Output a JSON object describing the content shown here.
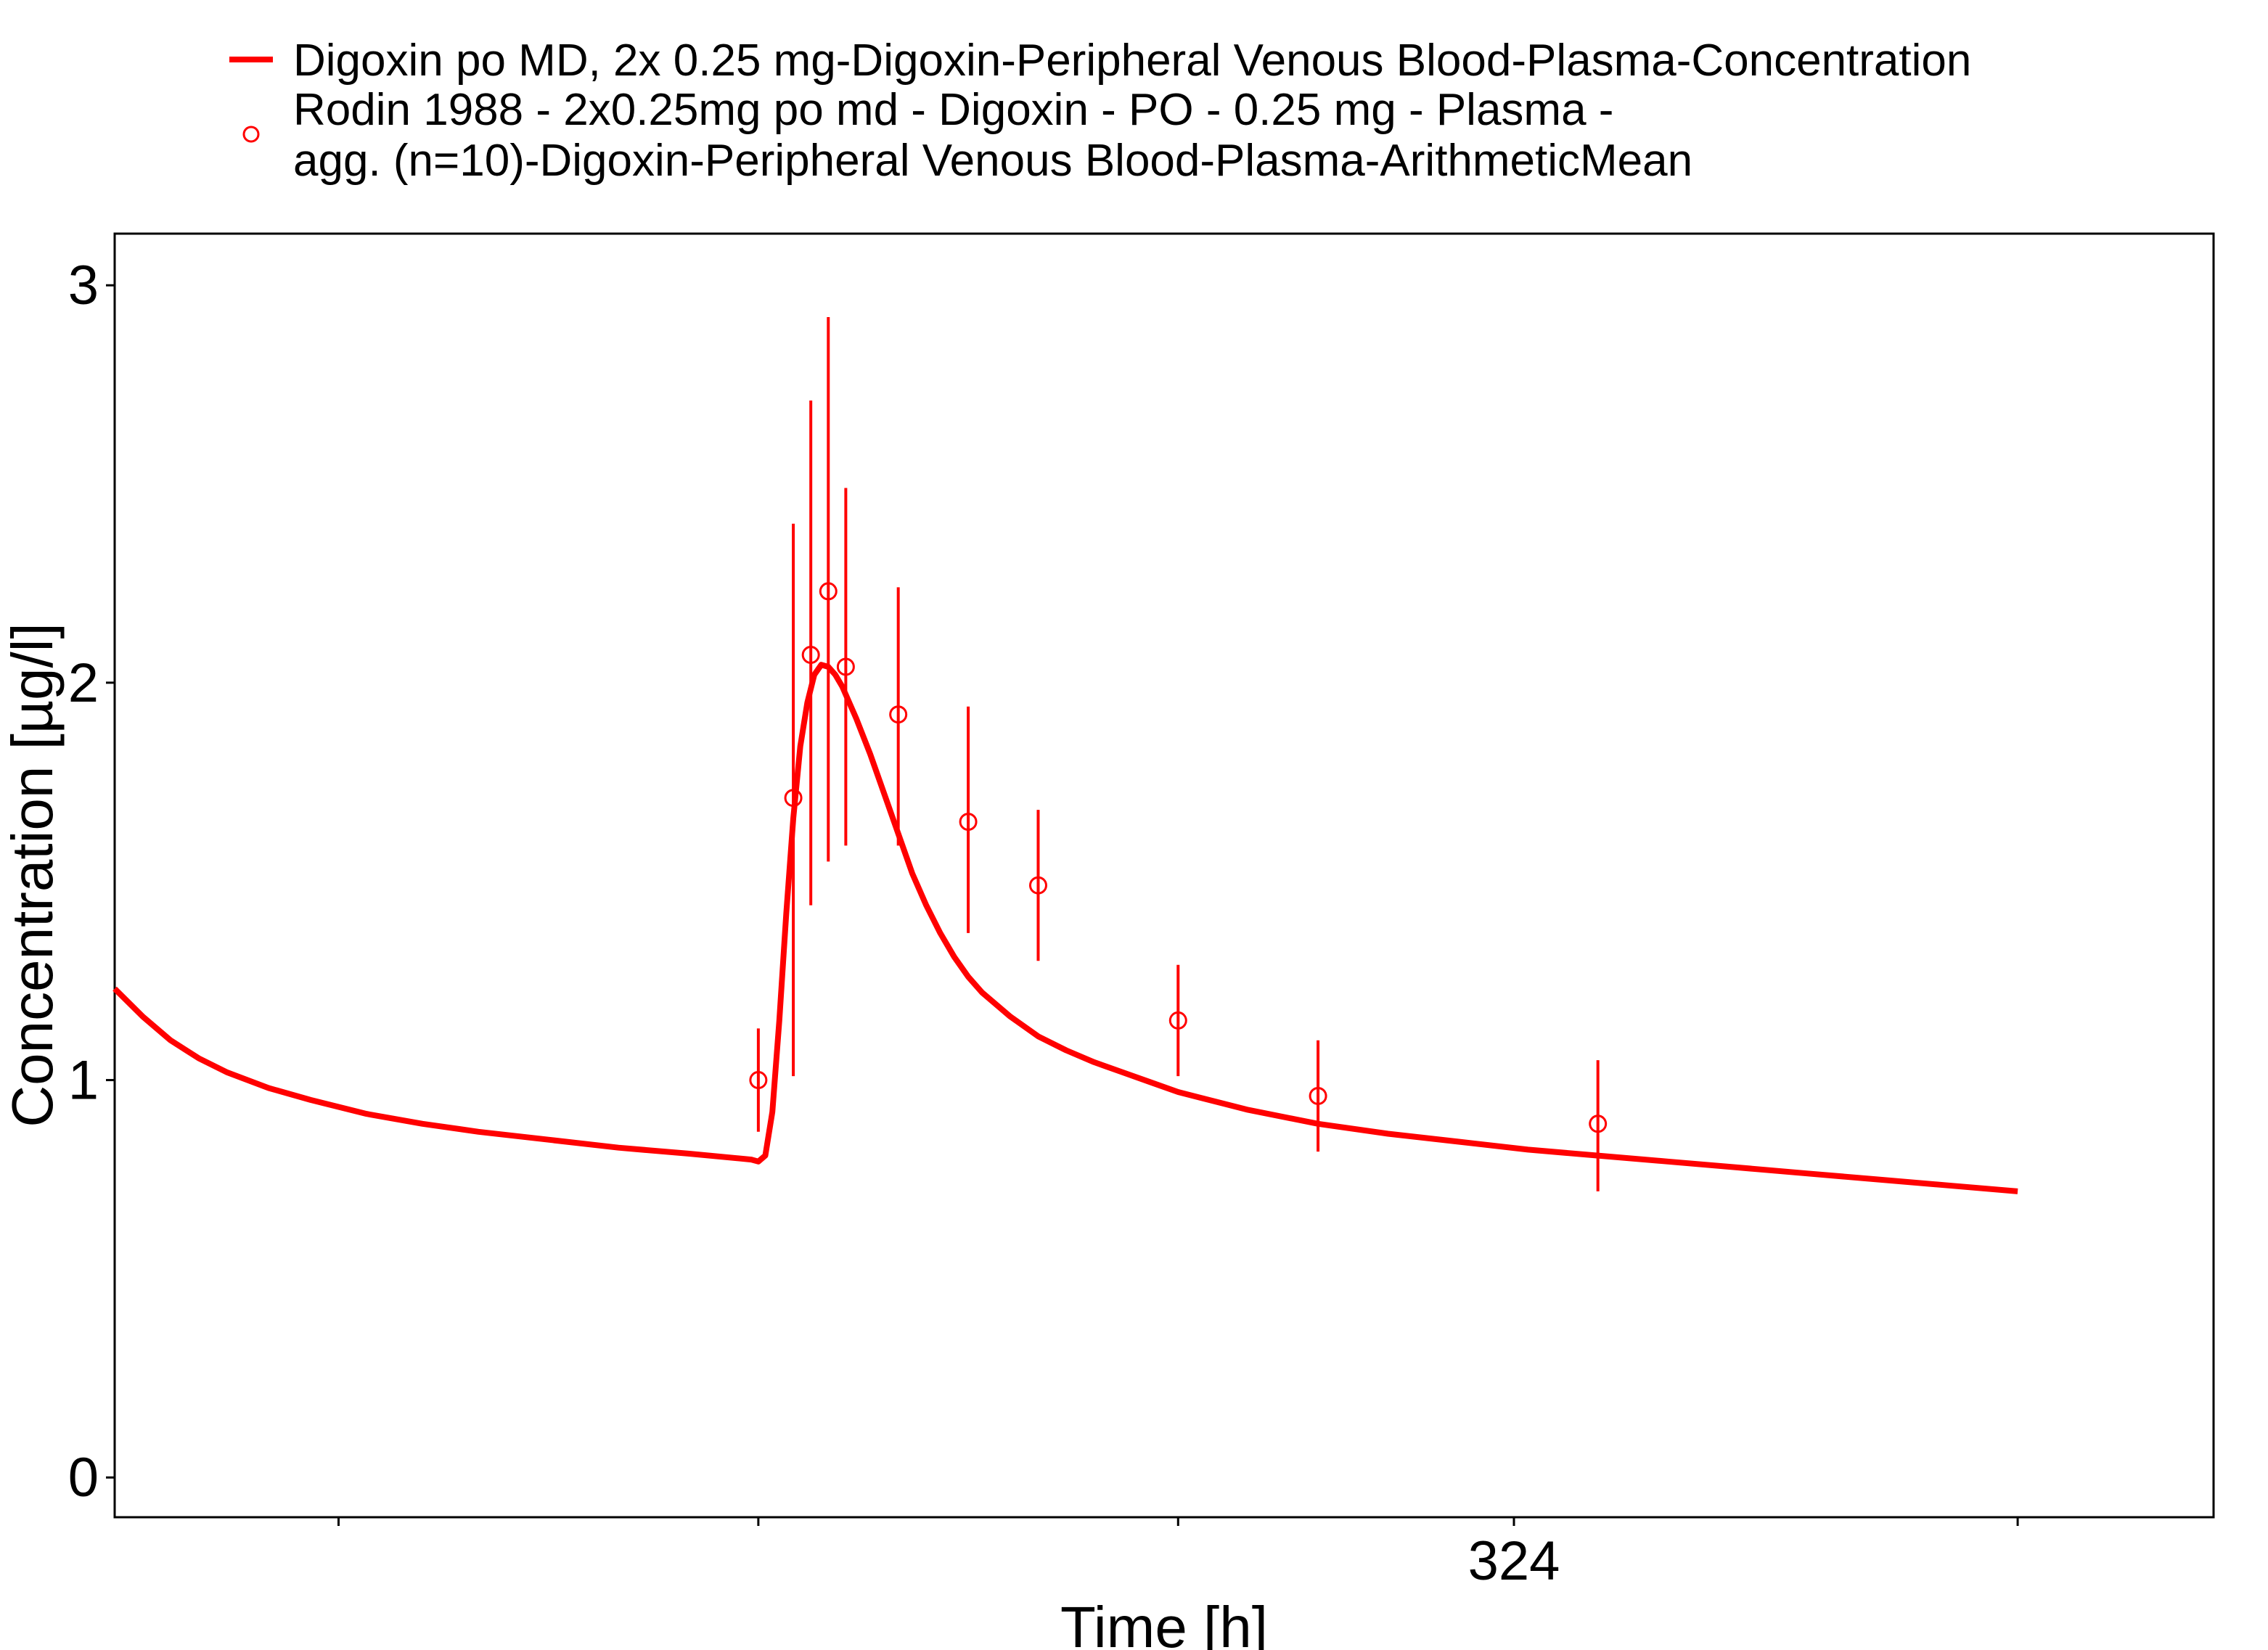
{
  "colors": {
    "series": "#ff0000",
    "axis": "#000000",
    "background": "#ffffff"
  },
  "legend": {
    "position": "top",
    "line_label": "Digoxin po MD, 2x 0.25 mg-Digoxin-Peripheral Venous Blood-Plasma-Concentration",
    "points_label_line1": "Rodin 1988 - 2x0.25mg po md - Digoxin - PO - 0.25 mg - Plasma -",
    "points_label_line2": "agg. (n=10)-Digoxin-Peripheral Venous Blood-Plasma-ArithmeticMean"
  },
  "chart_data": {
    "type": "line",
    "xlabel": "Time [h]",
    "ylabel": "Concentration [µg/l]",
    "xlim": [
      224,
      374
    ],
    "ylim": [
      -0.1,
      3.13
    ],
    "x_ticks": [
      240,
      270,
      300,
      324,
      360
    ],
    "x_tick_labels": [
      "",
      "",
      "",
      "324",
      ""
    ],
    "y_ticks": [
      0,
      1,
      2,
      3
    ],
    "y_tick_labels": [
      "0",
      "1",
      "2",
      "3"
    ],
    "grid": false,
    "series": [
      {
        "kind": "line",
        "x": [
          224,
          226,
          228,
          230,
          232,
          235,
          238,
          242,
          246,
          250,
          255,
          260,
          265,
          269.5,
          270,
          270.5,
          271,
          271.5,
          272,
          272.5,
          273,
          273.5,
          274,
          274.5,
          275,
          275.5,
          276,
          276.5,
          277,
          278,
          279,
          280,
          281,
          282,
          283,
          284,
          285,
          286,
          288,
          290,
          292,
          294,
          296,
          298,
          300,
          305,
          310,
          315,
          320,
          325,
          330,
          335,
          340,
          345,
          350,
          355,
          360
        ],
        "y": [
          1.23,
          1.16,
          1.1,
          1.055,
          1.02,
          0.98,
          0.95,
          0.915,
          0.89,
          0.87,
          0.85,
          0.83,
          0.815,
          0.8,
          0.795,
          0.81,
          0.92,
          1.15,
          1.42,
          1.66,
          1.84,
          1.95,
          2.02,
          2.045,
          2.04,
          2.02,
          1.99,
          1.95,
          1.91,
          1.82,
          1.72,
          1.62,
          1.52,
          1.44,
          1.37,
          1.31,
          1.26,
          1.22,
          1.16,
          1.11,
          1.075,
          1.045,
          1.02,
          0.995,
          0.97,
          0.925,
          0.89,
          0.865,
          0.845,
          0.825,
          0.81,
          0.795,
          0.78,
          0.765,
          0.75,
          0.735,
          0.72
        ]
      },
      {
        "kind": "points",
        "x": [
          270,
          272.5,
          273.75,
          275,
          276.25,
          280,
          285,
          290,
          300,
          310,
          330
        ],
        "y": [
          1.0,
          1.71,
          2.07,
          2.23,
          2.04,
          1.92,
          1.65,
          1.49,
          1.15,
          0.96,
          0.89
        ],
        "err_low": [
          0.87,
          1.01,
          1.44,
          1.55,
          1.59,
          1.59,
          1.37,
          1.3,
          1.01,
          0.82,
          0.72
        ],
        "err_high": [
          1.13,
          2.4,
          2.71,
          2.92,
          2.49,
          2.24,
          1.94,
          1.68,
          1.29,
          1.1,
          1.05
        ]
      }
    ]
  }
}
